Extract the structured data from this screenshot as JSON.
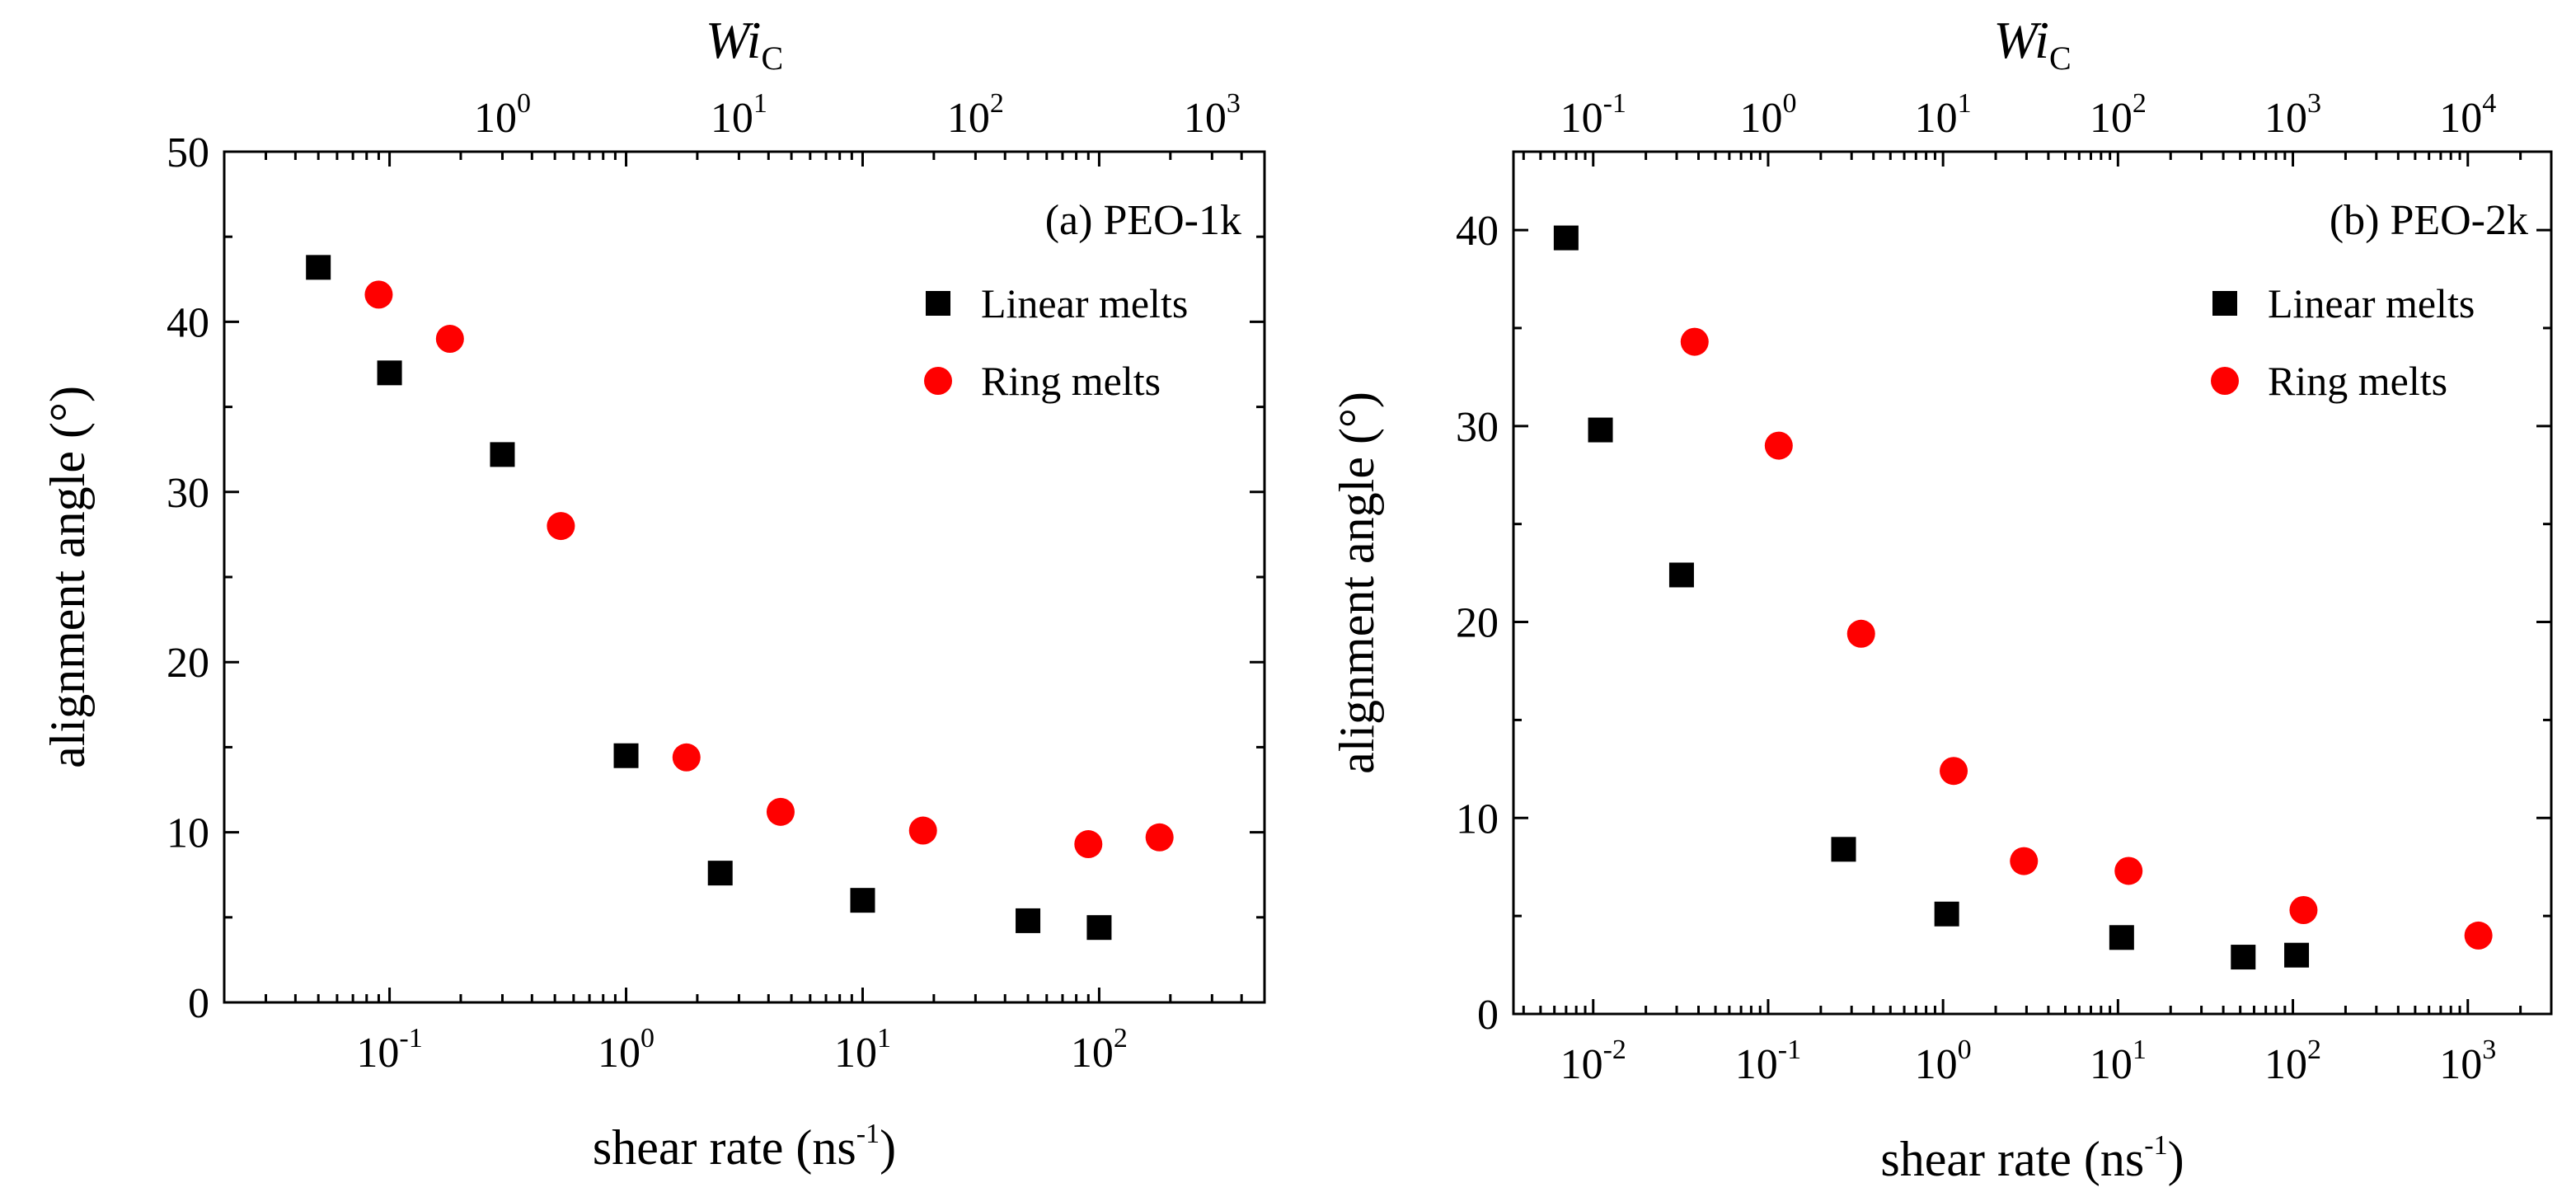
{
  "chart_data": [
    {
      "type": "scatter",
      "title": "(a) PEO-1k",
      "xlabel": "shear rate (ns-1)",
      "xlabel_main": "shear rate (ns",
      "xlabel_sup": "-1",
      "xlabel_close": ")",
      "ylabel": "alignment angle (°)",
      "top_axis_label": "Wi",
      "top_axis_label_sub": "C",
      "x_scale": "log",
      "xlim": [
        0.02,
        500
      ],
      "ylim": [
        0,
        50
      ],
      "y_ticks": [
        0,
        10,
        20,
        30,
        40,
        50
      ],
      "x_ticks": [
        {
          "value": 0.1,
          "base": "10",
          "exp": "-1"
        },
        {
          "value": 1,
          "base": "10",
          "exp": "0"
        },
        {
          "value": 10,
          "base": "10",
          "exp": "1"
        },
        {
          "value": 100,
          "base": "10",
          "exp": "2"
        }
      ],
      "top_ticks": [
        {
          "value": 0.3,
          "base": "10",
          "exp": "0"
        },
        {
          "value": 3,
          "base": "10",
          "exp": "1"
        },
        {
          "value": 30,
          "base": "10",
          "exp": "2"
        },
        {
          "value": 300,
          "base": "10",
          "exp": "3"
        }
      ],
      "legend_position": "top-right",
      "series": [
        {
          "name": "Linear melts",
          "marker": "square",
          "color": "#000000",
          "x": [
            0.05,
            0.1,
            0.3,
            1.0,
            2.5,
            10,
            50,
            100
          ],
          "y": [
            43.2,
            37.0,
            32.2,
            14.5,
            7.6,
            6.0,
            4.8,
            4.4
          ]
        },
        {
          "name": "Ring melts",
          "marker": "circle",
          "color": "#ff0000",
          "x": [
            0.09,
            0.18,
            0.53,
            1.8,
            4.5,
            18,
            90,
            180
          ],
          "y": [
            41.6,
            39.0,
            28.0,
            14.4,
            11.2,
            10.1,
            9.3,
            9.7
          ]
        }
      ]
    },
    {
      "type": "scatter",
      "title": "(b) PEO-2k",
      "xlabel": "shear rate (ns-1)",
      "xlabel_main": "shear rate (ns",
      "xlabel_sup": "-1",
      "xlabel_close": ")",
      "ylabel": "alignment angle (°)",
      "top_axis_label": "Wi",
      "top_axis_label_sub": "C",
      "x_scale": "log",
      "xlim": [
        0.0035,
        3000
      ],
      "ylim": [
        0,
        44
      ],
      "y_ticks": [
        0,
        10,
        20,
        30,
        40
      ],
      "x_ticks": [
        {
          "value": 0.01,
          "base": "10",
          "exp": "-2"
        },
        {
          "value": 0.1,
          "base": "10",
          "exp": "-1"
        },
        {
          "value": 1,
          "base": "10",
          "exp": "0"
        },
        {
          "value": 10,
          "base": "10",
          "exp": "1"
        },
        {
          "value": 100,
          "base": "10",
          "exp": "2"
        },
        {
          "value": 1000,
          "base": "10",
          "exp": "3"
        }
      ],
      "top_ticks": [
        {
          "value": 0.01,
          "base": "10",
          "exp": "-1"
        },
        {
          "value": 0.1,
          "base": "10",
          "exp": "0"
        },
        {
          "value": 1,
          "base": "10",
          "exp": "1"
        },
        {
          "value": 10,
          "base": "10",
          "exp": "2"
        },
        {
          "value": 100,
          "base": "10",
          "exp": "3"
        },
        {
          "value": 1000,
          "base": "10",
          "exp": "4"
        }
      ],
      "legend_position": "top-right",
      "series": [
        {
          "name": "Linear melts",
          "marker": "square",
          "color": "#000000",
          "x": [
            0.007,
            0.011,
            0.032,
            0.27,
            1.05,
            10.5,
            52,
            105
          ],
          "y": [
            39.6,
            29.8,
            22.4,
            8.4,
            5.1,
            3.9,
            2.9,
            3.0
          ]
        },
        {
          "name": "Ring melts",
          "marker": "circle",
          "color": "#ff0000",
          "x": [
            0.038,
            0.115,
            0.34,
            1.15,
            2.9,
            11.5,
            115,
            1150
          ],
          "y": [
            34.3,
            29.0,
            19.4,
            12.4,
            7.8,
            7.3,
            5.3,
            4.0
          ]
        }
      ]
    }
  ]
}
